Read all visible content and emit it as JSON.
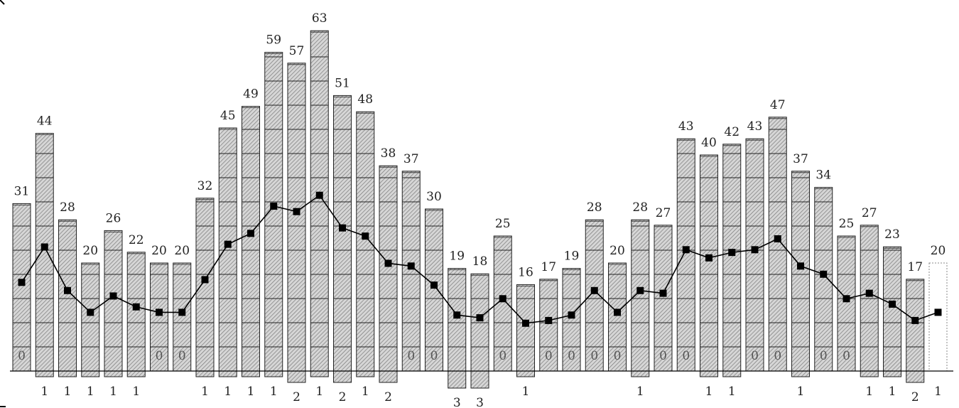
{
  "chart_data": {
    "type": "bar",
    "title": "",
    "xlabel": "",
    "ylabel": "",
    "grid": false,
    "legend": "none",
    "ylim_top": [
      0,
      63
    ],
    "ylim_bottom": [
      0,
      3
    ],
    "series": [
      {
        "values": [
          31,
          44,
          28,
          20,
          26,
          22,
          20,
          20,
          32,
          45,
          49,
          59,
          57,
          63,
          51,
          48,
          38,
          37,
          30,
          19,
          18,
          25,
          16,
          17,
          19,
          28,
          20,
          28,
          27,
          43,
          40,
          42,
          43,
          47,
          37,
          34,
          25,
          27,
          23,
          17,
          20
        ]
      },
      {
        "values": [
          0,
          1,
          1,
          1,
          1,
          1,
          0,
          0,
          1,
          1,
          1,
          1,
          2,
          1,
          2,
          1,
          2,
          0,
          0,
          3,
          3,
          0,
          1,
          0,
          0,
          0,
          0,
          1,
          0,
          0,
          1,
          1,
          0,
          0,
          1,
          0,
          0,
          1,
          1,
          2,
          1
        ]
      },
      {
        "values": [
          31,
          44,
          28,
          20,
          26,
          22,
          20,
          20,
          32,
          45,
          49,
          59,
          57,
          63,
          51,
          48,
          38,
          37,
          30,
          19,
          18,
          25,
          16,
          17,
          19,
          28,
          20,
          28,
          27,
          43,
          40,
          42,
          43,
          47,
          37,
          34,
          25,
          27,
          23,
          17,
          20
        ]
      }
    ],
    "bar_labels_bottom": [
      "0",
      "1",
      "1",
      "1",
      "1",
      "1",
      "0",
      "0",
      "1",
      "1",
      "1",
      "1",
      "2",
      "1",
      "2",
      "1",
      "2",
      "0",
      "0",
      "3",
      "3",
      "0",
      "1",
      "0",
      "0",
      "0",
      "0",
      "1",
      "0",
      "0",
      "1",
      "1",
      "0",
      "0",
      "1",
      "0",
      "0",
      "1",
      "1",
      "2",
      "1"
    ],
    "last_bar_style": "dotted-outline"
  },
  "colors": {
    "bar_fill": "#d6d6d6",
    "hatch": "#7a7a7a",
    "line": "#000000",
    "axis": "#000000"
  }
}
